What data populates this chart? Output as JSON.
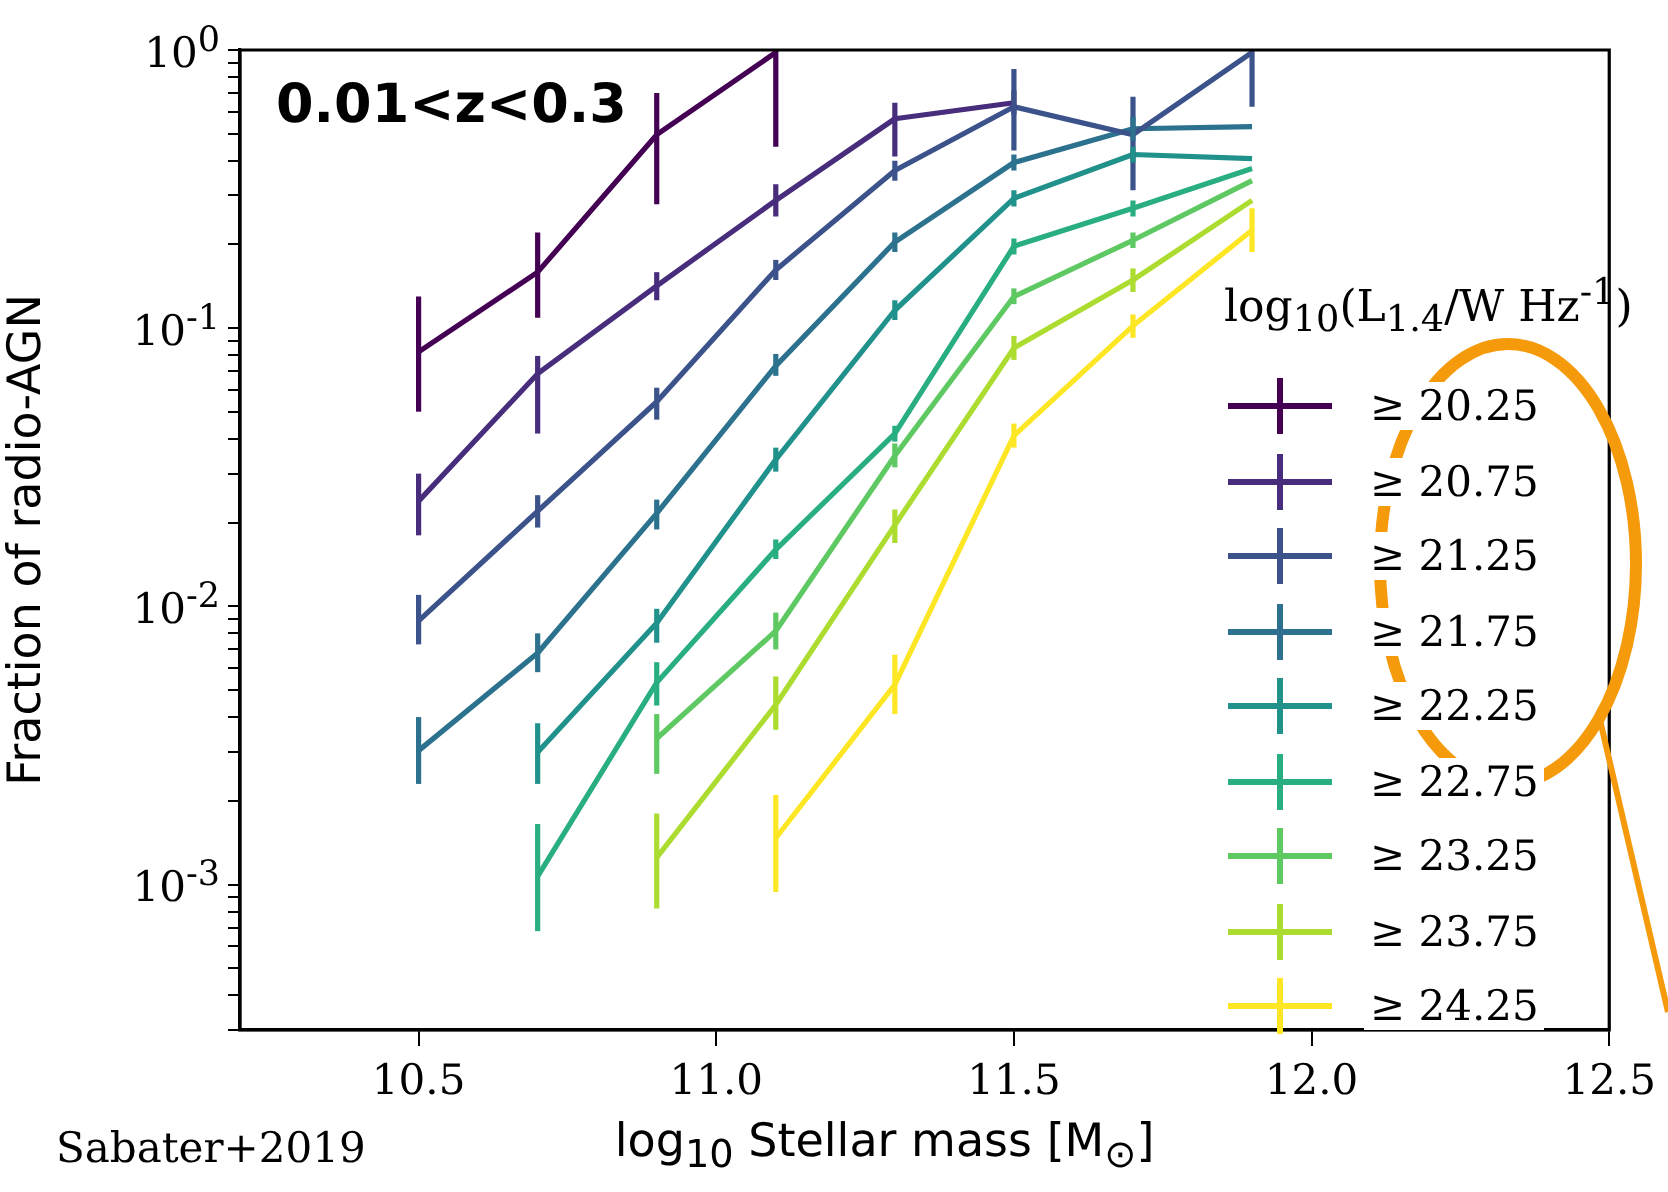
{
  "chart_data": {
    "type": "line",
    "xlabel": "log$_{10}$ Stellar mass [M$_{⊙}$]",
    "ylabel": "Fraction of radio-AGN",
    "legend_title": "log$_{10}$(L$_{1.4}$/W Hz$^{-1}$)",
    "annotations": [
      "0.01<z<0.3",
      "Sabater+2019"
    ],
    "legend": "right",
    "log": "y",
    "x": [
      10.5,
      10.7,
      10.9,
      11.1,
      11.3,
      11.5,
      11.7,
      11.9
    ],
    "xlim": [
      10.2,
      12.5
    ],
    "xticks": [
      10.5,
      {
        "value": 11,
        "label": "11.0"
      },
      11.5,
      {
        "value": 12,
        "label": "12.0"
      },
      12.5
    ],
    "ylim": [
      0.0003,
      1
    ],
    "yticks": [
      {
        "value": 0.0003,
        "label": null
      },
      {
        "value": 0.0004,
        "label": null
      },
      {
        "value": 0.0005,
        "label": null
      },
      {
        "value": 0.0006,
        "label": null
      },
      {
        "value": 0.0007,
        "label": null
      },
      {
        "value": 0.0008,
        "label": null
      },
      {
        "value": 0.0009,
        "label": null
      },
      {
        "value": 0.001,
        "label": "10$^{-3}$"
      },
      {
        "value": 0.002,
        "label": null
      },
      {
        "value": 0.003,
        "label": null
      },
      {
        "value": 0.004,
        "label": null
      },
      {
        "value": 0.005,
        "label": null
      },
      {
        "value": 0.006,
        "label": null
      },
      {
        "value": 0.007,
        "label": null
      },
      {
        "value": 0.008,
        "label": null
      },
      {
        "value": 0.009,
        "label": null
      },
      {
        "value": 0.01,
        "label": "10$^{-2}$"
      },
      {
        "value": 0.02,
        "label": null
      },
      {
        "value": 0.03,
        "label": null
      },
      {
        "value": 0.04,
        "label": null
      },
      {
        "value": 0.05,
        "label": null
      },
      {
        "value": 0.06,
        "label": null
      },
      {
        "value": 0.07,
        "label": null
      },
      {
        "value": 0.08,
        "label": null
      },
      {
        "value": 0.09,
        "label": null
      },
      {
        "value": 0.1,
        "label": "10$^{-1}$"
      },
      {
        "value": 0.2,
        "label": null
      },
      {
        "value": 0.3,
        "label": null
      },
      {
        "value": 0.4,
        "label": null
      },
      {
        "value": 0.5,
        "label": null
      },
      {
        "value": 0.6,
        "label": null
      },
      {
        "value": 0.7,
        "label": null
      },
      {
        "value": 0.8,
        "label": null
      },
      {
        "value": 0.9,
        "label": null
      },
      {
        "value": 1,
        "label": "10$^{0}$"
      }
    ],
    "series": [
      {
        "name": "≥ 20.25",
        "color": "#440154",
        "values": [
          0.0822,
          0.159,
          0.496,
          0.98,
          null,
          null,
          null,
          null
        ],
        "errors": [
          [
            0.0501,
            0.13
          ],
          [
            0.109,
            0.221
          ],
          [
            0.279,
            0.7
          ],
          [
            0.449,
            1
          ],
          null,
          null,
          null,
          null
        ]
      },
      {
        "name": "≥ 20.75",
        "color": "#472d7b",
        "values": [
          0.0239,
          0.0686,
          0.142,
          0.288,
          0.566,
          0.646,
          null,
          null
        ],
        "errors": [
          [
            0.018,
            0.03
          ],
          [
            0.0418,
            0.0795
          ],
          [
            0.126,
            0.159
          ],
          [
            0.252,
            0.329
          ],
          [
            0.414,
            0.646
          ],
          [
            0.585,
            0.713
          ],
          null,
          null
        ]
      },
      {
        "name": "≥ 21.25",
        "color": "#3b528b",
        "values": [
          0.00887,
          0.022,
          0.0544,
          0.162,
          0.369,
          0.625,
          0.496,
          0.98
        ],
        "errors": [
          [
            0.0073,
            0.011
          ],
          [
            0.0192,
            0.0251
          ],
          [
            0.0469,
            0.0611
          ],
          [
            0.149,
            0.176
          ],
          [
            0.339,
            0.4
          ],
          [
            0.435,
            0.855
          ],
          [
            0.313,
            0.679
          ],
          [
            0.625,
            1
          ]
        ]
      },
      {
        "name": "≥ 21.75",
        "color": "#2c728e",
        "values": [
          0.00303,
          0.0068,
          0.0216,
          0.0732,
          0.204,
          0.394,
          0.521,
          0.53
        ],
        "errors": [
          [
            0.0023,
            0.004
          ],
          [
            0.0058,
            0.008
          ],
          [
            0.0189,
            0.0242
          ],
          [
            0.0674,
            0.0808
          ],
          [
            0.188,
            0.221
          ],
          [
            0.369,
            0.421
          ],
          [
            0.472,
            0.575
          ],
          null
        ]
      },
      {
        "name": "≥ 22.25",
        "color": "#21918c",
        "values": [
          null,
          0.00299,
          0.00872,
          0.0337,
          0.116,
          0.293,
          0.421,
          0.407
        ],
        "errors": [
          null,
          [
            0.0023,
            0.0038
          ],
          [
            0.0074,
            0.0098
          ],
          [
            0.0305,
            0.0372
          ],
          [
            0.107,
            0.126
          ],
          [
            0.274,
            0.313
          ],
          [
            0.394,
            0.449
          ],
          null
        ]
      },
      {
        "name": "≥ 22.75",
        "color": "#28ae80",
        "values": [
          null,
          0.00107,
          0.00532,
          0.016,
          0.0418,
          0.197,
          0.27,
          0.375
        ],
        "errors": [
          null,
          [
            0.00068,
            0.00165
          ],
          [
            0.0044,
            0.0063
          ],
          [
            0.0148,
            0.0174
          ],
          [
            0.0391,
            0.0446
          ],
          [
            0.184,
            0.21
          ],
          [
            0.252,
            0.288
          ],
          null
        ]
      },
      {
        "name": "≥ 23.25",
        "color": "#5ec962",
        "values": [
          null,
          null,
          0.00335,
          0.00816,
          0.0348,
          0.13,
          0.207,
          0.339
        ],
        "errors": [
          null,
          null,
          [
            0.0025,
            0.0041
          ],
          [
            0.007,
            0.0095
          ],
          [
            0.0316,
            0.0385
          ],
          [
            0.122,
            0.139
          ],
          [
            0.194,
            0.221
          ],
          null
        ]
      },
      {
        "name": "≥ 23.75",
        "color": "#addc30",
        "values": [
          null,
          null,
          0.00125,
          0.00443,
          0.0196,
          0.0849,
          0.149,
          0.288
        ],
        "errors": [
          null,
          null,
          [
            0.00082,
            0.0018
          ],
          [
            0.0036,
            0.0056
          ],
          [
            0.0169,
            0.0223
          ],
          [
            0.0769,
            0.0938
          ],
          [
            0.135,
            0.164
          ],
          null
        ]
      },
      {
        "name": "≥ 24.25",
        "color": "#fde725",
        "values": [
          null,
          null,
          null,
          0.00147,
          0.00523,
          0.0411,
          0.102,
          0.225
        ],
        "errors": [
          null,
          null,
          null,
          [
            0.00094,
            0.0021
          ],
          [
            0.0041,
            0.0067
          ],
          [
            0.0372,
            0.0454
          ],
          [
            0.0923,
            0.112
          ],
          [
            0.188,
            0.27
          ]
        ]
      }
    ]
  }
}
